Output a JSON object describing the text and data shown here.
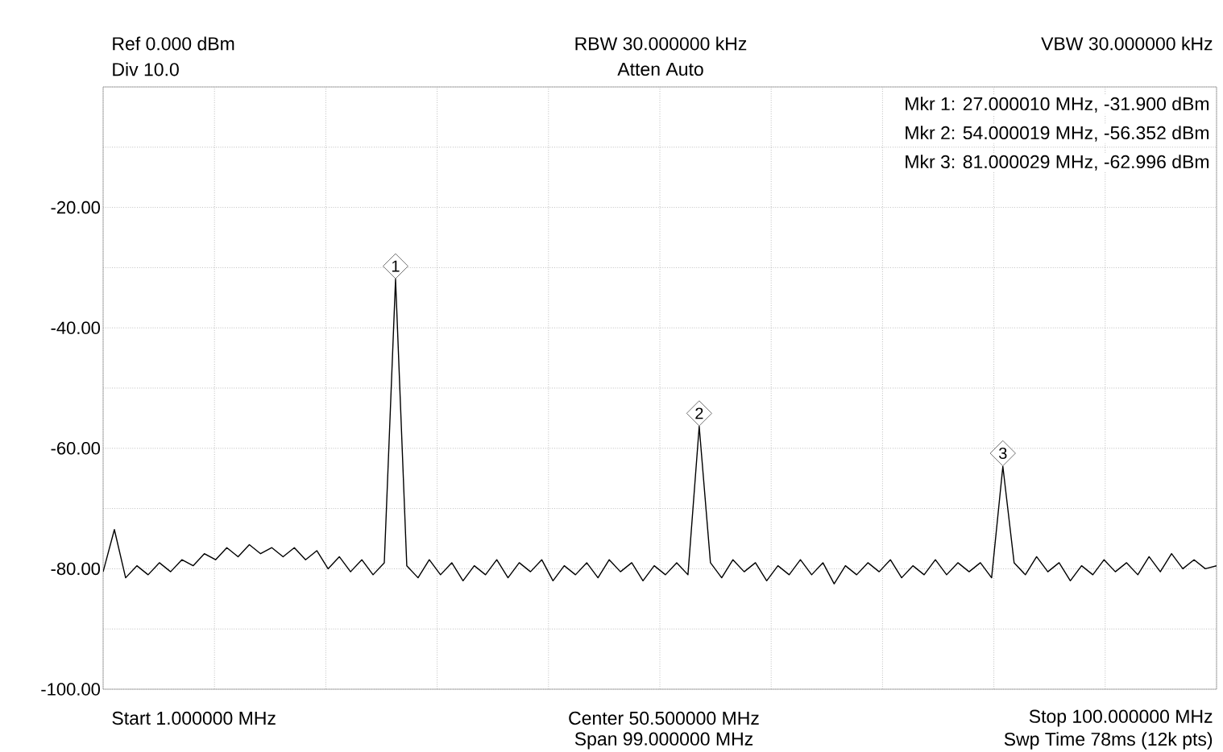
{
  "chart_data": {
    "type": "line",
    "annotations": [
      "Ref 0.000 dBm",
      "RBW 30.000000 kHz",
      "VBW 30.000000 kHz",
      "Div 10.0",
      "Atten Auto",
      "Mkr 1: 27.000010 MHz, -31.900 dBm",
      "Mkr 2: 54.000019 MHz, -56.352 dBm",
      "Mkr 3: 81.000029 MHz, -62.996 dBm",
      "Start 1.000000 MHz",
      "Center 50.500000 MHz",
      "Stop 100.000000 MHz",
      "Span 99.000000 MHz",
      "Swp Time 78ms (12k pts)",
      {
        "text": "1",
        "y": -31.9
      },
      {
        "text": "2",
        "y": -56.352
      },
      {
        "text": "3",
        "y": -62.996
      }
    ],
    "categories": [
      null,
      null,
      null,
      null,
      null,
      null,
      null,
      null,
      null,
      null,
      null,
      null,
      null,
      null,
      null,
      null,
      null,
      null,
      null,
      null,
      null,
      null,
      null,
      null,
      null,
      null,
      null,
      null,
      null,
      null,
      null,
      null,
      null,
      null,
      null,
      null,
      null,
      null,
      null,
      null,
      null,
      null,
      null,
      null,
      null,
      null,
      null,
      null,
      null,
      null,
      null,
      null,
      null,
      null,
      null,
      null,
      null,
      null,
      null,
      null,
      null,
      null,
      null,
      null,
      null,
      null,
      null,
      null,
      null,
      null,
      null,
      null,
      null,
      null,
      null,
      null,
      null,
      null,
      null,
      null,
      null,
      null,
      null,
      null,
      null,
      null,
      null,
      null,
      null,
      null,
      null,
      null,
      null,
      null,
      null,
      null,
      null,
      null,
      null,
      null
    ],
    "series": [
      {
        "color": "#000000",
        "values": [
          -80.5,
          -73.5,
          -81.5,
          -79.5,
          -81,
          -79,
          -80.5,
          -78.5,
          -79.5,
          -77.5,
          -78.5,
          -76.5,
          -78,
          -76,
          -77.5,
          -76.5,
          -78,
          -76.5,
          -78.5,
          -77,
          -80,
          -78,
          -80.5,
          -78.5,
          -81,
          -79,
          -31.9,
          -79.5,
          -81.5,
          -78.5,
          -81,
          -79,
          -82,
          -79.5,
          -81,
          -78.5,
          -81.5,
          -79,
          -80.5,
          -78.5,
          -82,
          -79.5,
          -81,
          -79,
          -81.5,
          -78.5,
          -80.5,
          -79,
          -82,
          -79.5,
          -81,
          -79,
          -81,
          -56.352,
          -79,
          -81.5,
          -78.5,
          -80.5,
          -79,
          -82,
          -79.5,
          -81,
          -78.5,
          -81,
          -79,
          -82.5,
          -79.5,
          -81,
          -79,
          -80.5,
          -78.5,
          -81.5,
          -79.5,
          -81,
          -78.5,
          -81,
          -79,
          -80.5,
          -79,
          -81.5,
          -62.996,
          -79,
          -81,
          -78,
          -80.5,
          -79,
          -82,
          -79.5,
          -81,
          -78.5,
          -80.5,
          -79,
          -81,
          -78,
          -80.5,
          -77.5,
          -80,
          -78.5,
          -80,
          -79.5
        ]
      }
    ],
    "ylim": [
      -100,
      0
    ],
    "yticks": [
      {
        "value": -100,
        "label": "-100.00"
      },
      {
        "value": -90,
        "label": null
      },
      {
        "value": -80,
        "label": "-80.00"
      },
      {
        "value": -70,
        "label": null
      },
      {
        "value": -60,
        "label": "-60.00"
      },
      {
        "value": -50,
        "label": null
      },
      {
        "value": -40,
        "label": "-40.00"
      },
      {
        "value": -30,
        "label": null
      },
      {
        "value": -20,
        "label": "-20.00"
      },
      {
        "value": -10,
        "label": null
      },
      {
        "value": 0,
        "label": null
      }
    ],
    "tick_labels": "y",
    "grid": true,
    "marker": "none",
    "line_style": "solid"
  }
}
